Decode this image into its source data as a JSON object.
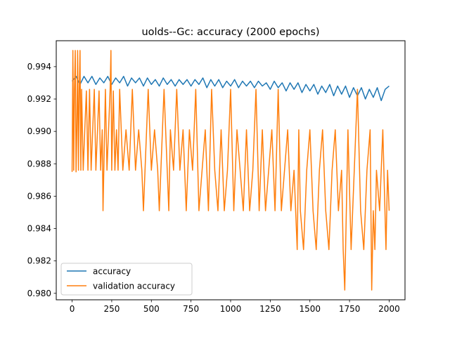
{
  "chart_data": {
    "type": "line",
    "title": "uolds--Gc: accuracy (2000 epochs)",
    "xlabel": "",
    "ylabel": "",
    "xlim": [
      -100,
      2100
    ],
    "ylim": [
      0.9796,
      0.9956
    ],
    "xticks": [
      0,
      250,
      500,
      750,
      1000,
      1250,
      1500,
      1750,
      2000
    ],
    "xtick_labels": [
      "0",
      "250",
      "500",
      "750",
      "1000",
      "1250",
      "1500",
      "1750",
      "2000"
    ],
    "yticks": [
      0.98,
      0.982,
      0.984,
      0.986,
      0.988,
      0.99,
      0.992,
      0.994
    ],
    "ytick_labels": [
      "0.980",
      "0.982",
      "0.984",
      "0.986",
      "0.988",
      "0.990",
      "0.992",
      "0.994"
    ],
    "grid": false,
    "legend_position": "lower-left",
    "series": [
      {
        "name": "accuracy",
        "color": "#1f77b4",
        "x": [
          0,
          25,
          50,
          75,
          100,
          125,
          150,
          175,
          200,
          225,
          250,
          275,
          300,
          325,
          350,
          375,
          400,
          425,
          450,
          475,
          500,
          525,
          550,
          575,
          600,
          625,
          650,
          675,
          700,
          725,
          750,
          775,
          800,
          825,
          850,
          875,
          900,
          925,
          950,
          975,
          1000,
          1025,
          1050,
          1075,
          1100,
          1125,
          1150,
          1175,
          1200,
          1225,
          1250,
          1275,
          1300,
          1325,
          1350,
          1375,
          1400,
          1425,
          1450,
          1475,
          1500,
          1525,
          1550,
          1575,
          1600,
          1625,
          1650,
          1675,
          1700,
          1725,
          1750,
          1775,
          1800,
          1825,
          1850,
          1875,
          1900,
          1925,
          1950,
          1975,
          2000
        ],
        "values": [
          0.9931,
          0.9934,
          0.9929,
          0.9934,
          0.993,
          0.9934,
          0.9929,
          0.9933,
          0.993,
          0.9934,
          0.9929,
          0.9933,
          0.993,
          0.9934,
          0.9928,
          0.9933,
          0.993,
          0.9933,
          0.9928,
          0.9933,
          0.9929,
          0.9932,
          0.9928,
          0.9933,
          0.9929,
          0.9932,
          0.9928,
          0.9932,
          0.9929,
          0.9932,
          0.9928,
          0.9932,
          0.9929,
          0.9933,
          0.9927,
          0.9932,
          0.9928,
          0.9932,
          0.9927,
          0.9931,
          0.9928,
          0.9932,
          0.9927,
          0.9931,
          0.9928,
          0.9931,
          0.9927,
          0.9931,
          0.9928,
          0.993,
          0.9926,
          0.9931,
          0.9927,
          0.993,
          0.9925,
          0.993,
          0.9926,
          0.993,
          0.9924,
          0.9929,
          0.9925,
          0.9929,
          0.9923,
          0.9928,
          0.9924,
          0.9929,
          0.9922,
          0.9928,
          0.9923,
          0.9928,
          0.9921,
          0.9927,
          0.9922,
          0.9927,
          0.992,
          0.9926,
          0.9921,
          0.9927,
          0.9919,
          0.9926,
          0.9928
        ]
      },
      {
        "name": "validation accuracy",
        "color": "#ff7f0e",
        "x": [
          0,
          5,
          10,
          15,
          20,
          25,
          30,
          35,
          40,
          45,
          50,
          55,
          60,
          70,
          80,
          90,
          100,
          110,
          120,
          130,
          140,
          150,
          160,
          170,
          180,
          190,
          195,
          200,
          210,
          220,
          230,
          240,
          245,
          250,
          260,
          270,
          280,
          290,
          300,
          320,
          340,
          360,
          380,
          400,
          420,
          440,
          450,
          460,
          480,
          500,
          520,
          540,
          550,
          560,
          580,
          600,
          610,
          620,
          640,
          660,
          680,
          700,
          720,
          740,
          760,
          780,
          800,
          820,
          840,
          860,
          880,
          900,
          920,
          940,
          960,
          980,
          1000,
          1020,
          1040,
          1060,
          1080,
          1100,
          1120,
          1140,
          1160,
          1180,
          1200,
          1220,
          1240,
          1260,
          1280,
          1300,
          1320,
          1340,
          1360,
          1380,
          1400,
          1420,
          1430,
          1440,
          1460,
          1480,
          1500,
          1520,
          1540,
          1560,
          1580,
          1600,
          1620,
          1640,
          1660,
          1680,
          1700,
          1710,
          1720,
          1730,
          1740,
          1760,
          1780,
          1800,
          1820,
          1840,
          1860,
          1880,
          1890,
          1900,
          1910,
          1920,
          1940,
          1960,
          1980,
          1990,
          2000
        ],
        "values": [
          0.9875,
          0.995,
          0.9876,
          0.9926,
          0.995,
          0.9875,
          0.9901,
          0.995,
          0.9876,
          0.9925,
          0.995,
          0.9876,
          0.9926,
          0.9876,
          0.9901,
          0.9925,
          0.9876,
          0.9926,
          0.9876,
          0.9901,
          0.9926,
          0.9876,
          0.99,
          0.9925,
          0.9876,
          0.9901,
          0.9851,
          0.9876,
          0.9926,
          0.9876,
          0.9901,
          0.9926,
          0.995,
          0.9876,
          0.9925,
          0.9876,
          0.9901,
          0.9876,
          0.9926,
          0.9876,
          0.9901,
          0.9876,
          0.9926,
          0.9876,
          0.9901,
          0.9876,
          0.9851,
          0.9876,
          0.9926,
          0.9876,
          0.9901,
          0.9876,
          0.9851,
          0.9876,
          0.9926,
          0.9876,
          0.9851,
          0.9901,
          0.9876,
          0.9926,
          0.9876,
          0.9901,
          0.9851,
          0.9901,
          0.9876,
          0.9926,
          0.9851,
          0.9876,
          0.9901,
          0.9851,
          0.9926,
          0.9876,
          0.9851,
          0.9901,
          0.9851,
          0.9876,
          0.9926,
          0.9851,
          0.9901,
          0.9876,
          0.9851,
          0.9901,
          0.9851,
          0.9876,
          0.9926,
          0.9851,
          0.9901,
          0.9851,
          0.9876,
          0.9901,
          0.9851,
          0.9926,
          0.9851,
          0.9876,
          0.9901,
          0.9851,
          0.9876,
          0.9827,
          0.9901,
          0.9851,
          0.9827,
          0.9876,
          0.9901,
          0.9851,
          0.9827,
          0.9876,
          0.9901,
          0.9851,
          0.9827,
          0.9876,
          0.9901,
          0.9851,
          0.9876,
          0.9827,
          0.9802,
          0.9851,
          0.9901,
          0.9827,
          0.9876,
          0.9926,
          0.9851,
          0.9827,
          0.9876,
          0.9901,
          0.9802,
          0.9851,
          0.9827,
          0.9876,
          0.9851,
          0.9901,
          0.9827,
          0.9876,
          0.9851
        ]
      }
    ]
  }
}
